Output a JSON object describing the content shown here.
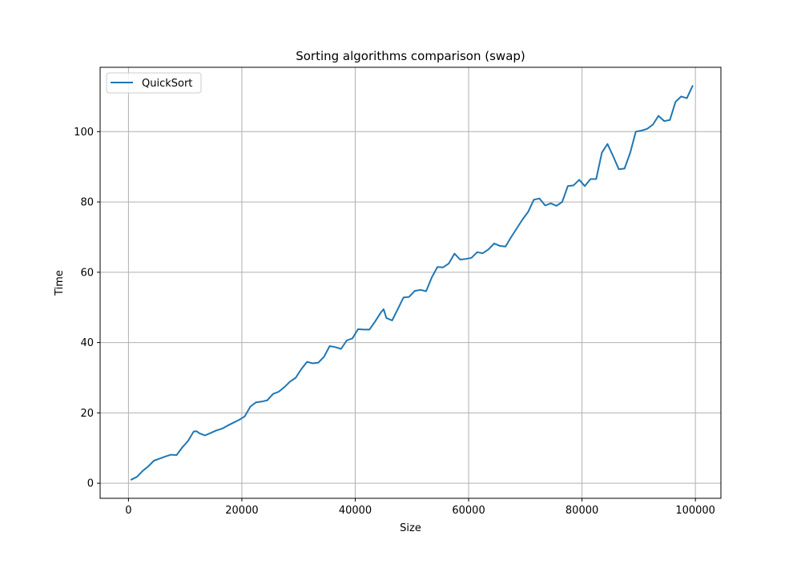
{
  "chart_data": {
    "type": "line",
    "title": "Sorting algorithms comparison (swap)",
    "xlabel": "Size",
    "ylabel": "Time",
    "xlim": [
      -5000,
      104500
    ],
    "ylim": [
      -4.3,
      118.3
    ],
    "xticks": [
      0,
      20000,
      40000,
      60000,
      80000,
      100000
    ],
    "xtick_labels": [
      "0",
      "20000",
      "40000",
      "60000",
      "80000",
      "100000"
    ],
    "yticks": [
      0,
      20,
      40,
      60,
      80,
      100
    ],
    "ytick_labels": [
      "0",
      "20",
      "40",
      "60",
      "80",
      "100"
    ],
    "grid": true,
    "legend_position": "upper-left",
    "series": [
      {
        "name": "QuickSort",
        "color": "#1f77b4",
        "x": [
          500,
          1500,
          2500,
          3500,
          4500,
          5500,
          6500,
          7500,
          8500,
          9500,
          10500,
          11500,
          12000,
          12500,
          13500,
          14500,
          15500,
          16500,
          17500,
          18500,
          19500,
          20500,
          21500,
          22500,
          23500,
          24500,
          25500,
          26500,
          27500,
          28500,
          29500,
          30500,
          31500,
          32500,
          33500,
          34500,
          35500,
          36500,
          37500,
          38500,
          39500,
          40500,
          41500,
          42500,
          43500,
          44500,
          45000,
          45500,
          46500,
          47500,
          48500,
          49500,
          50500,
          51500,
          52500,
          53500,
          54500,
          55500,
          56500,
          57500,
          58500,
          59500,
          60500,
          61500,
          62500,
          63500,
          64500,
          65500,
          66500,
          67500,
          68500,
          69500,
          70500,
          71500,
          72500,
          73500,
          74500,
          75500,
          76500,
          77500,
          78500,
          79500,
          80500,
          81500,
          82500,
          83500,
          84500,
          85500,
          86500,
          87500,
          88500,
          89500,
          90500,
          91500,
          92500,
          93500,
          94500,
          95500,
          96500,
          97500,
          98500,
          99500
        ],
        "y": [
          1.0,
          1.8,
          3.5,
          4.8,
          6.4,
          7.0,
          7.6,
          8.1,
          8.0,
          10.2,
          12.0,
          14.7,
          14.8,
          14.2,
          13.6,
          14.3,
          15.0,
          15.5,
          16.4,
          17.2,
          18.0,
          19.0,
          21.8,
          23.0,
          23.2,
          23.6,
          25.4,
          26.0,
          27.3,
          28.9,
          30.0,
          32.5,
          34.5,
          34.1,
          34.3,
          36.0,
          39.0,
          38.7,
          38.2,
          40.6,
          41.2,
          43.8,
          43.7,
          43.7,
          46.0,
          48.5,
          49.5,
          47.0,
          46.3,
          49.5,
          52.8,
          53.0,
          54.7,
          55.0,
          54.6,
          58.5,
          61.5,
          61.4,
          62.5,
          65.3,
          63.6,
          63.8,
          64.1,
          65.7,
          65.4,
          66.5,
          68.2,
          67.5,
          67.3,
          70.0,
          72.5,
          75.0,
          77.2,
          80.6,
          81.0,
          79.0,
          79.6,
          78.9,
          80.0,
          84.5,
          84.7,
          86.3,
          84.5,
          86.5,
          86.5,
          94.0,
          96.5,
          93.0,
          89.3,
          89.5,
          94.0,
          100.0,
          100.3,
          100.8,
          102.0,
          104.5,
          103.0,
          103.3,
          108.5,
          110.0,
          109.5,
          113.0
        ]
      }
    ]
  }
}
